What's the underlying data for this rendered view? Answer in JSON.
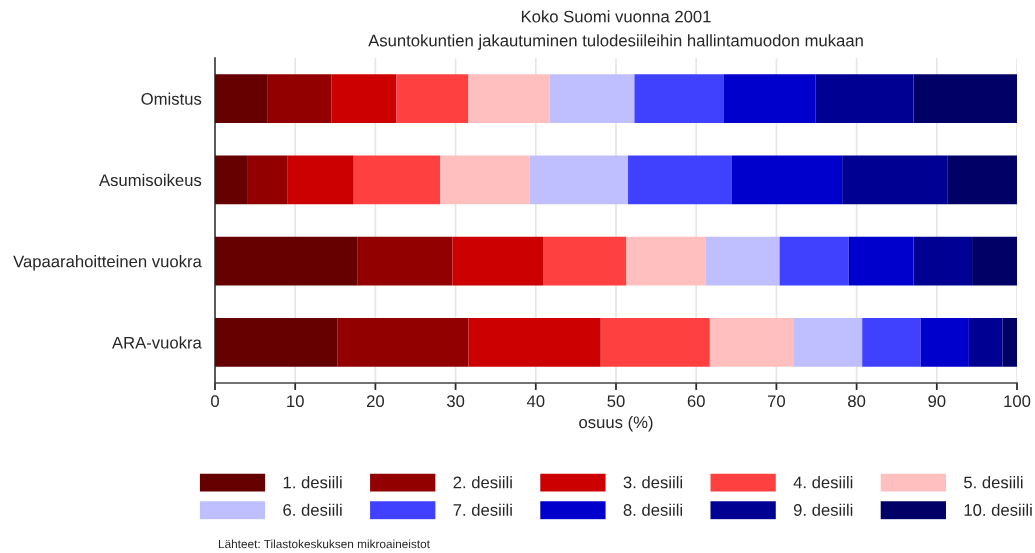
{
  "chart_data": {
    "type": "bar",
    "orientation": "horizontal",
    "stacked": true,
    "title": "Koko Suomi vuonna 2001",
    "subtitle": "Asuntokuntien jakautuminen tulodesiileihin hallintamuodon mukaan",
    "xlabel": "osuus (%)",
    "categories": [
      "Omistus",
      "Asumisoikeus",
      "Vapaarahoitteinen vuokra",
      "ARA-vuokra"
    ],
    "series": [
      {
        "name": "1. desiili",
        "color": "#660000",
        "values": [
          6.5,
          4.1,
          17.8,
          15.3
        ]
      },
      {
        "name": "2. desiili",
        "color": "#930000",
        "values": [
          8.0,
          4.9,
          11.8,
          16.3
        ]
      },
      {
        "name": "3. desiili",
        "color": "#cc0000",
        "values": [
          8.1,
          8.3,
          11.3,
          16.5
        ]
      },
      {
        "name": "4. desiili",
        "color": "#ff4040",
        "values": [
          9.0,
          10.8,
          10.4,
          13.6
        ]
      },
      {
        "name": "5. desiili",
        "color": "#ffbfbf",
        "values": [
          10.1,
          11.1,
          9.9,
          10.4
        ]
      },
      {
        "name": "6. desiili",
        "color": "#bfbfff",
        "values": [
          10.6,
          12.3,
          9.2,
          8.6
        ]
      },
      {
        "name": "7. desiili",
        "color": "#4040ff",
        "values": [
          11.1,
          12.9,
          8.6,
          7.3
        ]
      },
      {
        "name": "8. desiili",
        "color": "#0000cc",
        "values": [
          11.5,
          13.8,
          8.1,
          6.0
        ]
      },
      {
        "name": "9. desiili",
        "color": "#000093",
        "values": [
          12.2,
          13.1,
          7.3,
          4.2
        ]
      },
      {
        "name": "10. desiili",
        "color": "#000066",
        "values": [
          12.9,
          8.7,
          5.6,
          1.8
        ]
      }
    ],
    "xlim": [
      0,
      100
    ],
    "xticks": [
      0,
      10,
      20,
      30,
      40,
      50,
      60,
      70,
      80,
      90,
      100
    ],
    "grid": "x",
    "legend": "bottom",
    "annotations": [
      "Lähteet: Tilastokeskuksen mikroaineistot"
    ]
  }
}
